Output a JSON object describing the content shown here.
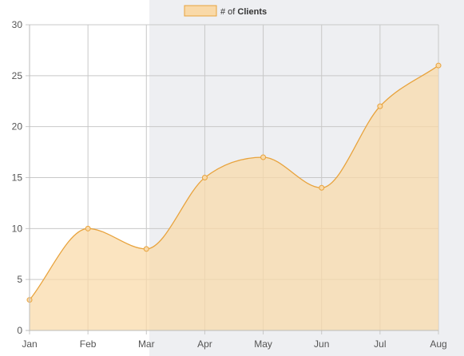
{
  "legend": {
    "prefix": "# of",
    "strong": "Clients",
    "fill": "#f9d9a8",
    "stroke": "#e8a33d"
  },
  "chart_data": {
    "type": "area",
    "categories": [
      "Jan",
      "Feb",
      "Mar",
      "Apr",
      "May",
      "Jun",
      "Jul",
      "Aug"
    ],
    "series": [
      {
        "name": "# of Clients",
        "values": [
          3,
          10,
          8,
          15,
          17,
          14,
          22,
          26
        ]
      }
    ],
    "ylim": [
      0,
      30
    ],
    "yticks": [
      0,
      5,
      10,
      15,
      20,
      25,
      30
    ],
    "grid": true,
    "legend_position": "top",
    "colors": {
      "line": "#e8a33d",
      "fill": "#f9d9a8",
      "grid": "#c8c8c8",
      "right_panel": "#eeeff2"
    }
  }
}
